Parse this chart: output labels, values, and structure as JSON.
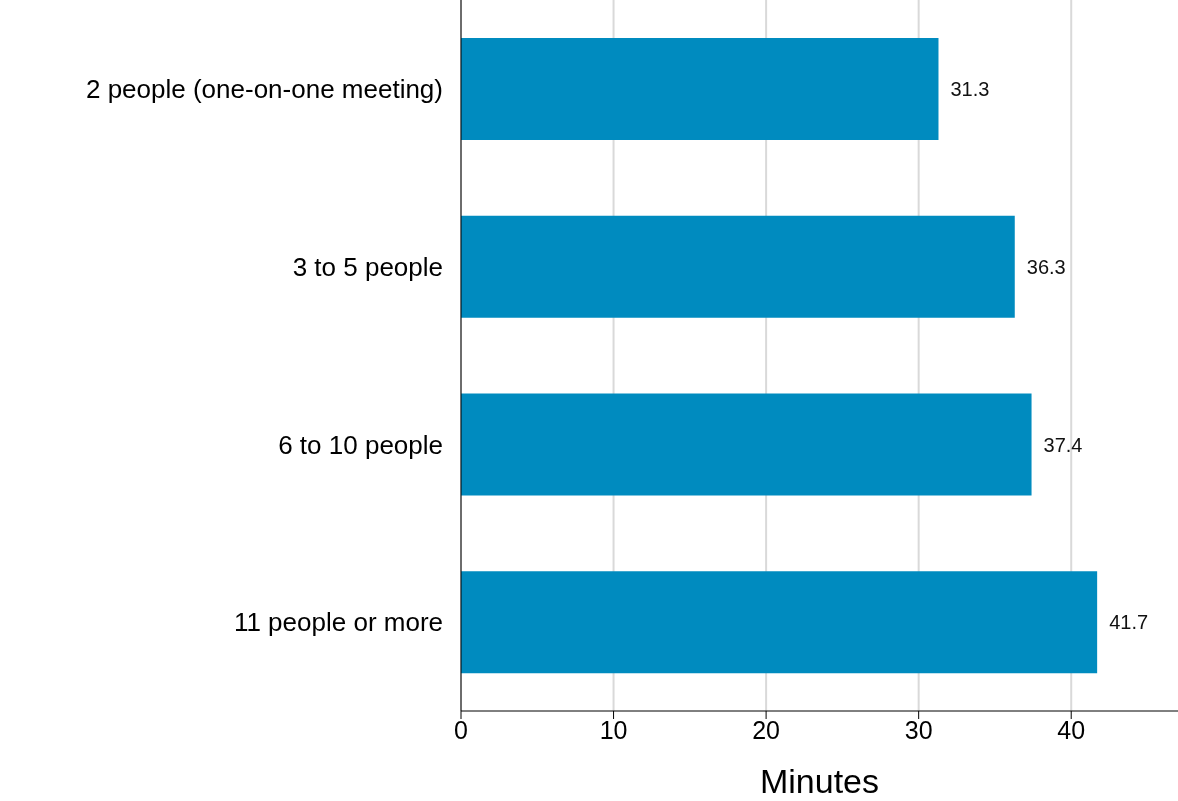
{
  "chart_data": {
    "type": "bar",
    "orientation": "horizontal",
    "xlabel": "Minutes",
    "categories": [
      "2 people (one-on-one meeting)",
      "3 to 5 people",
      "6 to 10 people",
      "11 people or more"
    ],
    "values": [
      31.3,
      36.3,
      37.4,
      41.7
    ],
    "color": "#008bbf",
    "data_labels": true,
    "xlim": [
      0,
      47
    ],
    "xticks": [
      0,
      10,
      20,
      30,
      40
    ],
    "grid": "x"
  }
}
